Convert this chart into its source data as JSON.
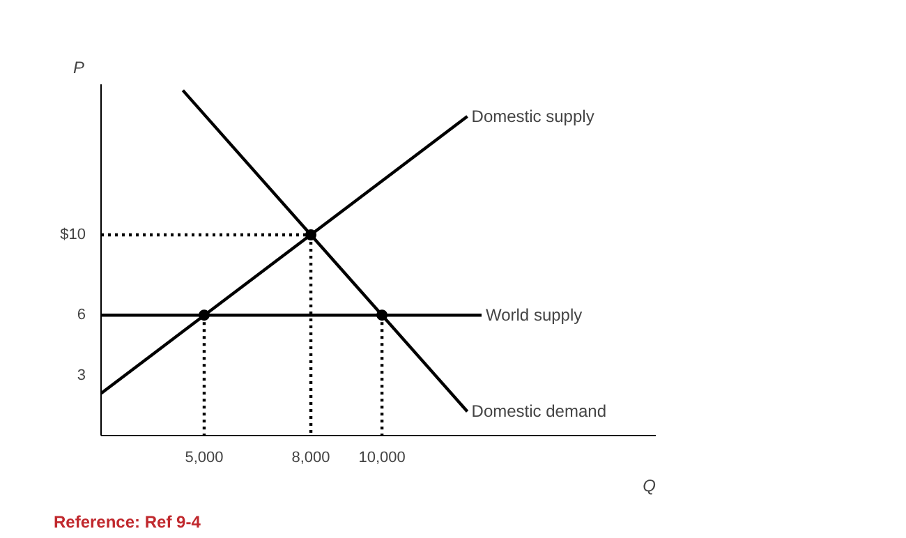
{
  "chart_data": {
    "type": "line",
    "xlabel": "Q",
    "ylabel": "P",
    "xlim": [
      2100,
      17700
    ],
    "ylim": [
      0,
      17.5
    ],
    "xticks": [
      {
        "value": 5000,
        "label": "5,000"
      },
      {
        "value": 8000,
        "label": "8,000"
      },
      {
        "value": 10000,
        "label": "10,000"
      }
    ],
    "yticks": [
      3,
      6,
      {
        "value": 10,
        "label": "$10"
      }
    ],
    "grid": false,
    "marker": "none",
    "line_style": "solid",
    "series": [
      {
        "name": "Domestic supply",
        "color": "#000000",
        "x": [
          2100,
          12400
        ],
        "values": [
          2.1,
          15.9
        ]
      },
      {
        "name": "World supply",
        "color": "#000000",
        "x": [
          2100,
          12800
        ],
        "values": [
          6,
          6
        ]
      },
      {
        "name": "Domestic demand",
        "color": "#000000",
        "x": [
          4400,
          12400
        ],
        "values": [
          17.2,
          1.2
        ]
      },
      {
        "color": "#000000",
        "line_style": "dotted",
        "x": [
          2100,
          8000
        ],
        "values": [
          10,
          10
        ]
      },
      {
        "color": "#000000",
        "line_style": "dotted",
        "x": [
          8000,
          8000
        ],
        "values": [
          10,
          0
        ]
      },
      {
        "color": "#000000",
        "line_style": "dotted",
        "x": [
          5000,
          5000
        ],
        "values": [
          6,
          0
        ]
      },
      {
        "color": "#000000",
        "line_style": "dotted",
        "x": [
          10000,
          10000
        ],
        "values": [
          6,
          0
        ]
      },
      {
        "type": "scatter",
        "marker": "circle",
        "color": "#000000",
        "x": [
          5000,
          8000,
          10000
        ],
        "values": [
          6,
          10,
          6
        ]
      }
    ],
    "annotations": [
      "Reference: Ref 9-4"
    ]
  }
}
